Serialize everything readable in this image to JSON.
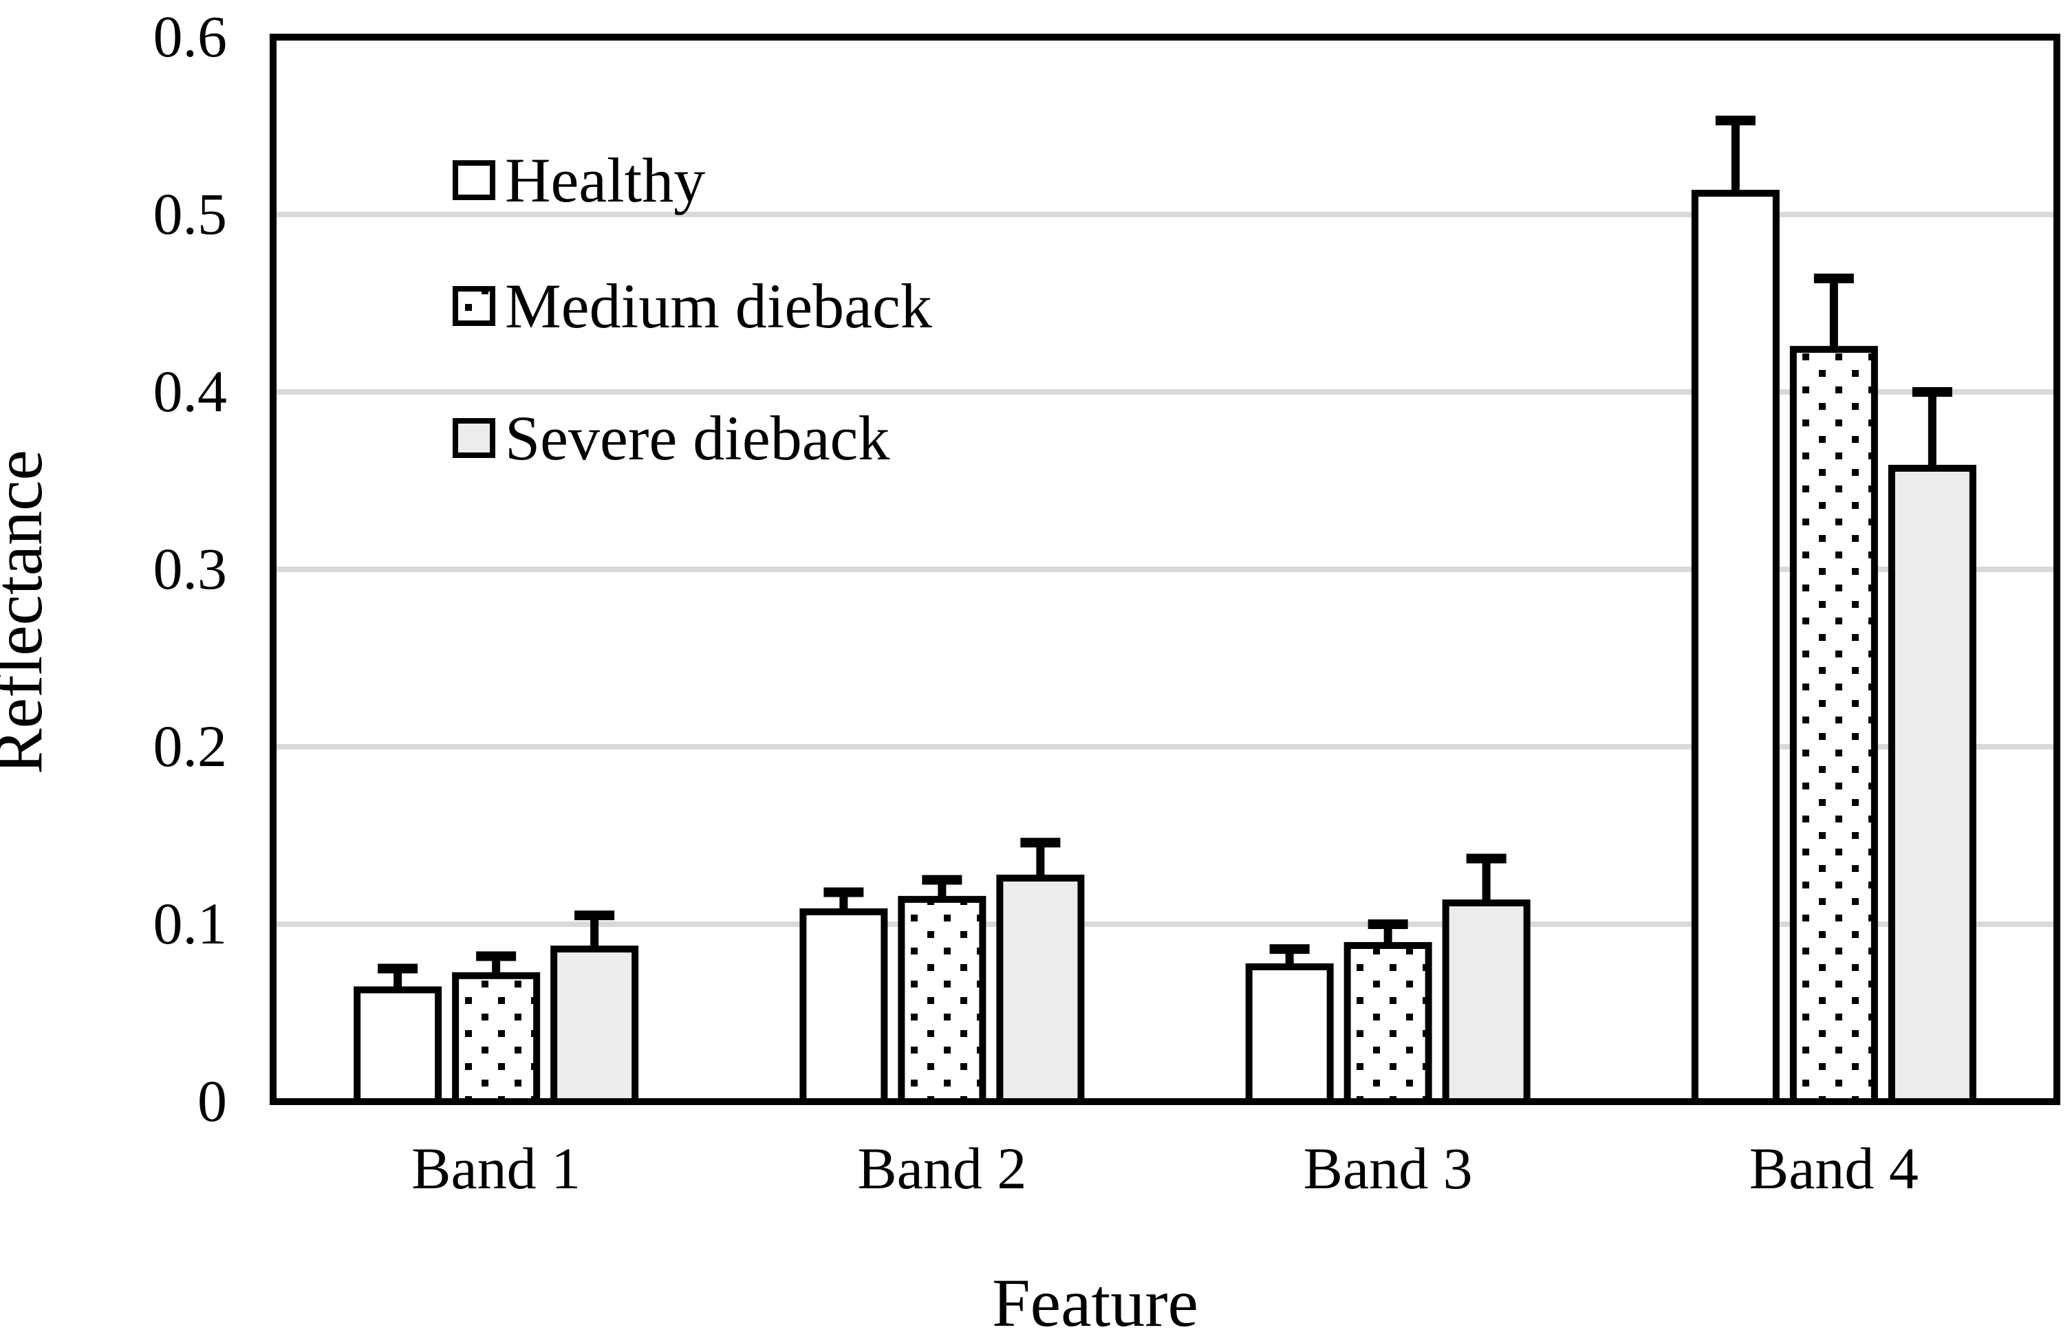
{
  "chart_data": {
    "type": "bar",
    "title": "",
    "xlabel": "Feature",
    "ylabel": "Reflectance",
    "categories": [
      "Band 1",
      "Band 2",
      "Band 3",
      "Band 4"
    ],
    "series": [
      {
        "name": "Healthy",
        "fill": "#ffffff",
        "pattern": "solid",
        "values": [
          0.063,
          0.107,
          0.076,
          0.512
        ],
        "errors": [
          0.012,
          0.011,
          0.01,
          0.041
        ]
      },
      {
        "name": "Medium dieback",
        "fill": "#ffffff",
        "pattern": "dots",
        "values": [
          0.071,
          0.114,
          0.088,
          0.424
        ],
        "errors": [
          0.011,
          0.011,
          0.012,
          0.04
        ]
      },
      {
        "name": "Severe dieback",
        "fill": "#ececec",
        "pattern": "solid",
        "values": [
          0.086,
          0.126,
          0.112,
          0.357
        ],
        "errors": [
          0.019,
          0.02,
          0.025,
          0.043
        ]
      }
    ],
    "ylim": [
      0,
      0.6
    ],
    "y_ticks": [
      0,
      0.1,
      0.2,
      0.3,
      0.4,
      0.5,
      0.6
    ],
    "y_tick_labels": [
      "0",
      "0.1",
      "0.2",
      "0.3",
      "0.4",
      "0.5",
      "0.6"
    ],
    "grid": "horizontal",
    "legend_position": "top-left-inside",
    "colors": {
      "axis": "#000000",
      "gridline": "#d9d9d9",
      "bar_border": "#000000",
      "error_bar": "#000000",
      "background": "#ffffff"
    }
  }
}
